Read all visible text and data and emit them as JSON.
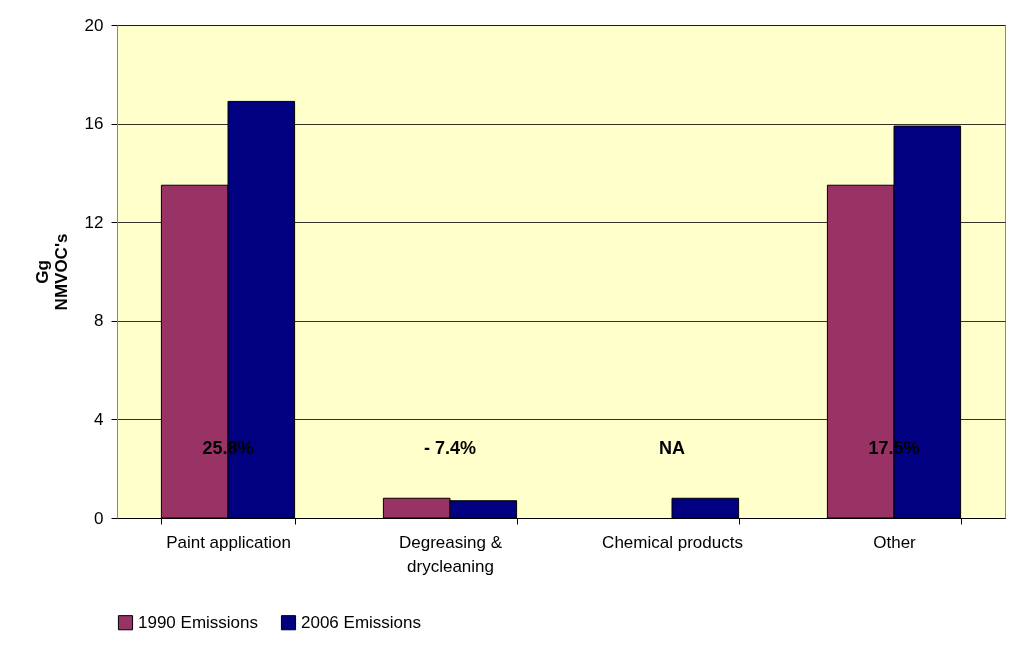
{
  "chart_data": {
    "type": "bar",
    "categories": [
      "Paint application",
      "Degreasing & drycleaning",
      "Chemical products",
      "Other"
    ],
    "ylabel": "Gg\nNMVOC's",
    "series": [
      {
        "name": "1990 Emissions",
        "color": "#993366",
        "values": [
          13.5,
          0.8,
          null,
          13.5
        ]
      },
      {
        "name": "2006 Emissions",
        "color": "#000080",
        "values": [
          16.9,
          0.7,
          0.8,
          15.9
        ]
      }
    ],
    "ylim": [
      0,
      20
    ],
    "yticks": [
      0,
      4,
      8,
      12,
      16,
      20
    ],
    "grid": "y",
    "legend": "bottom",
    "annotations": [
      "25.8%",
      "- 7.4%",
      "NA",
      "17.5%"
    ]
  }
}
